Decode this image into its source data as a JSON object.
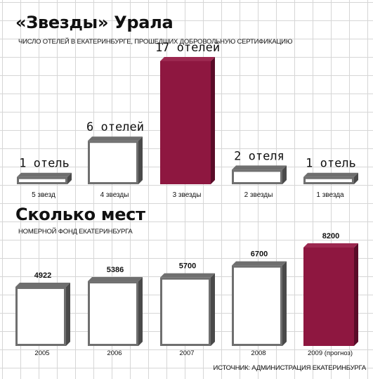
{
  "colors": {
    "accent": "#8e1740",
    "accent_top": "#9c2850",
    "accent_side": "#5a0c28",
    "outline": "#6f6f6f",
    "outline_side": "#4a4a4a",
    "grid": "#d6d6d6"
  },
  "chart_data": [
    {
      "type": "bar",
      "title": "«Звезды» Урала",
      "subtitle": "ЧИСЛО ОТЕЛЕЙ В ЕКАТЕРИНБУРГЕ, ПРОШЕДШИХ ДОБРОВОЛЬНУЮ СЕРТИФИКАЦИЮ",
      "categories": [
        "5 звезд",
        "4 звезды",
        "3 звезды",
        "2 звезды",
        "1 звезда"
      ],
      "values": [
        1,
        6,
        17,
        2,
        1
      ],
      "data_labels": [
        "1 отель",
        "6 отелей",
        "17 отелей",
        "2 отеля",
        "1 отель"
      ],
      "highlight": [
        false,
        false,
        true,
        false,
        false
      ],
      "ylim": [
        0,
        17
      ],
      "grid": true
    },
    {
      "type": "bar",
      "title": "Сколько мест",
      "subtitle": "НОМЕРНОЙ ФОНД ЕКАТЕРИНБУРГА",
      "categories": [
        "2005",
        "2006",
        "2007",
        "2008",
        "2009 (прогноз)"
      ],
      "values": [
        4922,
        5386,
        5700,
        6700,
        8200
      ],
      "data_labels": [
        "4922",
        "5386",
        "5700",
        "6700",
        "8200"
      ],
      "highlight": [
        false,
        false,
        false,
        false,
        true
      ],
      "ylim": [
        0,
        8200
      ],
      "grid": true
    }
  ],
  "source": "ИСТОЧНИК: АДМИНИСТРАЦИЯ ЕКАТЕРИНБУРГА"
}
